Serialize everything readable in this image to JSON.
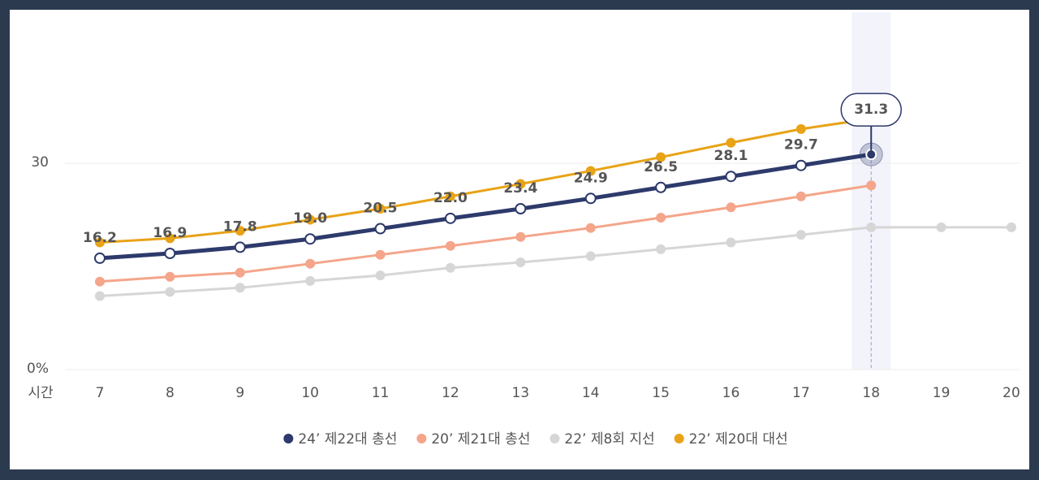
{
  "chart_data": {
    "type": "line",
    "x_label": "시간",
    "categories": [
      "7",
      "8",
      "9",
      "10",
      "11",
      "12",
      "13",
      "14",
      "15",
      "16",
      "17",
      "18",
      "19",
      "20"
    ],
    "ylim": [
      0,
      52
    ],
    "yticks": [
      {
        "value": 0,
        "label": "0%"
      },
      30
    ],
    "grid": true,
    "legend": "bottom",
    "series": [
      {
        "name": "24’ 제22대 총선",
        "color": "#2d3a6b",
        "values": [
          16.2,
          16.9,
          17.8,
          19.0,
          20.5,
          22.0,
          23.4,
          24.9,
          26.5,
          28.1,
          29.7,
          31.3,
          null,
          null
        ],
        "value_labels": [
          "16.2",
          "16.9",
          "17.8",
          "19.0",
          "20.5",
          "22.0",
          "23.4",
          "24.9",
          "26.5",
          "28.1",
          "29.7",
          "31.3",
          null,
          null
        ]
      },
      {
        "name": "20’ 제21대 총선",
        "color": "#f4a58a",
        "values": [
          12.8,
          13.5,
          14.1,
          15.4,
          16.7,
          18.0,
          19.3,
          20.6,
          22.1,
          23.6,
          25.2,
          26.8,
          null,
          null
        ]
      },
      {
        "name": "22’ 제8회 지선",
        "color": "#d6d6d6",
        "values": [
          10.7,
          11.3,
          11.9,
          12.9,
          13.7,
          14.8,
          15.6,
          16.5,
          17.5,
          18.5,
          19.6,
          20.7,
          20.7,
          20.7
        ]
      },
      {
        "name": "22’ 제20대 대선",
        "color": "#e8a317",
        "values": [
          18.5,
          19.1,
          20.2,
          21.8,
          23.4,
          25.2,
          27.0,
          28.9,
          30.9,
          33.0,
          35.0,
          36.5,
          null,
          null
        ]
      }
    ]
  }
}
